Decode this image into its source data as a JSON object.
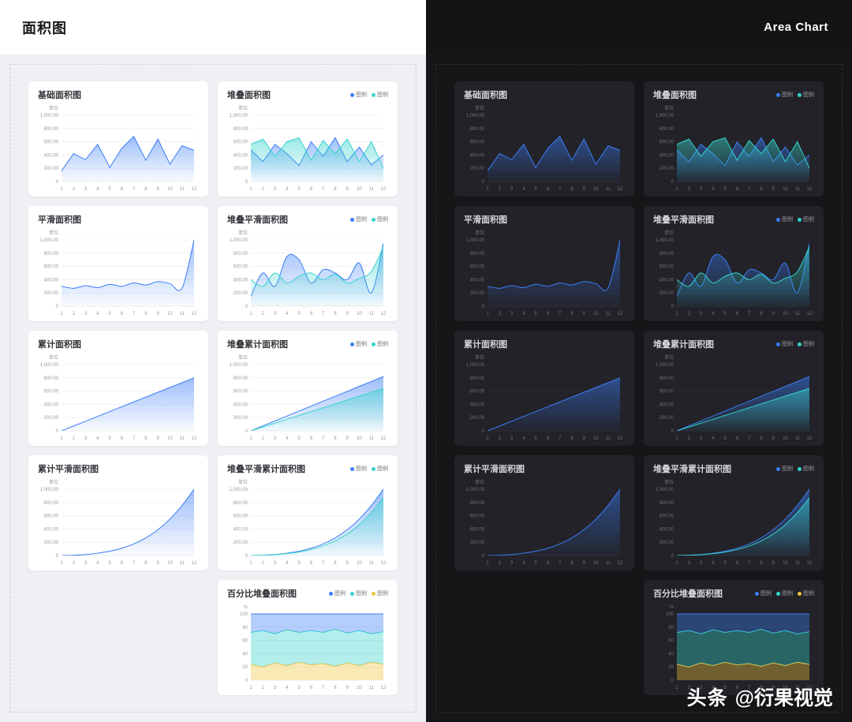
{
  "header": {
    "title": "面积图",
    "subtitle": "Area Chart"
  },
  "watermark": {
    "brand": "头条",
    "handle": "@衍果视觉"
  },
  "legend_label": "图例",
  "axis": {
    "unit_label": "单位",
    "percent_unit": "%",
    "x_ticks": [
      "1",
      "2",
      "3",
      "4",
      "5",
      "6",
      "7",
      "8",
      "9",
      "10",
      "11",
      "12"
    ],
    "value_ticks": [
      "1,000.00",
      "800.00",
      "600.00",
      "400.00",
      "200.00",
      "0"
    ],
    "percent_ticks": [
      "100",
      "80",
      "60",
      "40",
      "20",
      "0"
    ]
  },
  "colors": {
    "blue": "#3a7df5",
    "teal": "#36d3cd",
    "yellow": "#eec53d"
  },
  "chart_data": [
    {
      "id": "basic",
      "title": "基础面积图",
      "type": "area",
      "smooth": false,
      "percent": false,
      "ymax": 1000,
      "series": [
        {
          "name": "图例",
          "color": "blue",
          "values": [
            160,
            420,
            330,
            560,
            210,
            500,
            680,
            320,
            640,
            260,
            540,
            470
          ]
        }
      ]
    },
    {
      "id": "stacked",
      "title": "堆叠面积图",
      "type": "area",
      "smooth": false,
      "percent": false,
      "ymax": 1000,
      "series": [
        {
          "name": "图例",
          "color": "blue",
          "values": [
            480,
            300,
            560,
            420,
            240,
            600,
            380,
            660,
            300,
            520,
            250,
            400
          ]
        },
        {
          "name": "图例",
          "color": "teal",
          "values": [
            560,
            640,
            380,
            600,
            660,
            320,
            620,
            420,
            640,
            300,
            600,
            200
          ]
        }
      ]
    },
    {
      "id": "smooth",
      "title": "平滑面积图",
      "type": "area",
      "smooth": true,
      "percent": false,
      "ymax": 1000,
      "series": [
        {
          "name": "图例",
          "color": "blue",
          "values": [
            300,
            270,
            310,
            280,
            330,
            300,
            350,
            320,
            370,
            340,
            270,
            1000
          ]
        }
      ]
    },
    {
      "id": "stacked-smooth",
      "title": "堆叠平滑面积图",
      "type": "area",
      "smooth": true,
      "percent": false,
      "ymax": 1000,
      "series": [
        {
          "name": "图例",
          "color": "blue",
          "values": [
            150,
            500,
            300,
            750,
            700,
            350,
            550,
            500,
            400,
            650,
            200,
            950
          ]
        },
        {
          "name": "图例",
          "color": "teal",
          "values": [
            400,
            300,
            500,
            350,
            450,
            500,
            400,
            480,
            350,
            420,
            520,
            900
          ]
        }
      ]
    },
    {
      "id": "cumulative",
      "title": "累计面积图",
      "type": "area",
      "smooth": false,
      "percent": false,
      "ymax": 1000,
      "series": [
        {
          "name": "图例",
          "color": "blue",
          "values": [
            0,
            73,
            145,
            218,
            291,
            364,
            436,
            509,
            582,
            655,
            727,
            800
          ]
        }
      ]
    },
    {
      "id": "stacked-cumulative",
      "title": "堆叠累计面积图",
      "type": "area",
      "smooth": false,
      "percent": false,
      "ymax": 1000,
      "series": [
        {
          "name": "图例",
          "color": "blue",
          "values": [
            0,
            75,
            149,
            224,
            298,
            373,
            447,
            522,
            596,
            671,
            745,
            820
          ]
        },
        {
          "name": "图例",
          "color": "teal",
          "values": [
            0,
            58,
            116,
            175,
            233,
            291,
            349,
            407,
            465,
            524,
            582,
            640
          ]
        }
      ]
    },
    {
      "id": "cumulative-smooth",
      "title": "累计平滑面积图",
      "type": "area",
      "smooth": true,
      "percent": false,
      "ymax": 1000,
      "series": [
        {
          "name": "图例",
          "color": "blue",
          "values": [
            0,
            5,
            15,
            35,
            65,
            110,
            175,
            265,
            390,
            550,
            755,
            1000
          ]
        }
      ]
    },
    {
      "id": "stacked-smooth-cumulative",
      "title": "堆叠平滑累计面积图",
      "type": "area",
      "smooth": true,
      "percent": false,
      "ymax": 1000,
      "series": [
        {
          "name": "图例",
          "color": "blue",
          "values": [
            0,
            5,
            15,
            35,
            65,
            110,
            175,
            265,
            390,
            550,
            755,
            1000
          ]
        },
        {
          "name": "图例",
          "color": "teal",
          "values": [
            0,
            4,
            12,
            28,
            52,
            90,
            145,
            220,
            325,
            465,
            645,
            870
          ]
        }
      ]
    },
    {
      "id": "percent-stacked",
      "title": "百分比堆叠面积图",
      "type": "area",
      "smooth": false,
      "percent": true,
      "legend_reverse": true,
      "ymax": 100,
      "series": [
        {
          "name": "图例",
          "color": "yellow",
          "values": [
            24,
            20,
            26,
            22,
            27,
            23,
            25,
            21,
            26,
            22,
            27,
            24
          ]
        },
        {
          "name": "图例",
          "color": "teal",
          "values": [
            48,
            55,
            44,
            54,
            45,
            52,
            47,
            56,
            45,
            53,
            43,
            49
          ]
        },
        {
          "name": "图例",
          "color": "blue",
          "values": [
            28,
            25,
            30,
            24,
            28,
            25,
            28,
            23,
            29,
            25,
            30,
            27
          ]
        }
      ]
    }
  ]
}
